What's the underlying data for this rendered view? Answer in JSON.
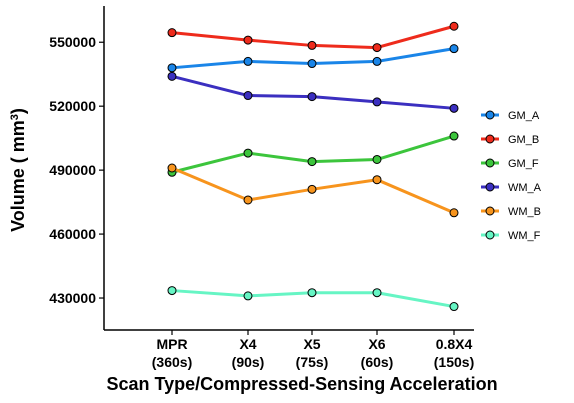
{
  "chart_data": {
    "type": "line",
    "title": "",
    "xlabel": "Scan Type/Compressed-Sensing Acceleration",
    "ylabel": {
      "main": "Volume ( mm",
      "superscript": "3",
      "close": ")"
    },
    "ylim": [
      415000,
      567000
    ],
    "yticks": [
      430000,
      460000,
      490000,
      520000,
      550000
    ],
    "ytick_labels": [
      "430000",
      "460000",
      "490000",
      "520000",
      "550000"
    ],
    "categories": [
      {
        "line1": "MPR",
        "line2": "(360s)"
      },
      {
        "line1": "X4",
        "line2": "(90s)"
      },
      {
        "line1": "X5",
        "line2": "(75s)"
      },
      {
        "line1": "X6",
        "line2": "(60s)"
      },
      {
        "line1": "0.8X4",
        "line2": "(150s)"
      }
    ],
    "grid": false,
    "legend_position": "right",
    "series": [
      {
        "name": "GM_A",
        "color": "#1a85e8",
        "values": [
          538000,
          541000,
          540000,
          541000,
          547000
        ]
      },
      {
        "name": "GM_B",
        "color": "#ee2b1c",
        "values": [
          554500,
          551000,
          548500,
          547500,
          557500
        ]
      },
      {
        "name": "GM_F",
        "color": "#3cc53c",
        "values": [
          489000,
          498000,
          494000,
          495000,
          506000
        ]
      },
      {
        "name": "WM_A",
        "color": "#3b2fc0",
        "values": [
          534000,
          525000,
          524500,
          522000,
          519000
        ]
      },
      {
        "name": "WM_B",
        "color": "#f7941d",
        "values": [
          491000,
          476000,
          481000,
          485500,
          470000
        ]
      },
      {
        "name": "WM_F",
        "color": "#66f5c4",
        "values": [
          433500,
          431000,
          432500,
          432500,
          426000
        ]
      }
    ]
  }
}
